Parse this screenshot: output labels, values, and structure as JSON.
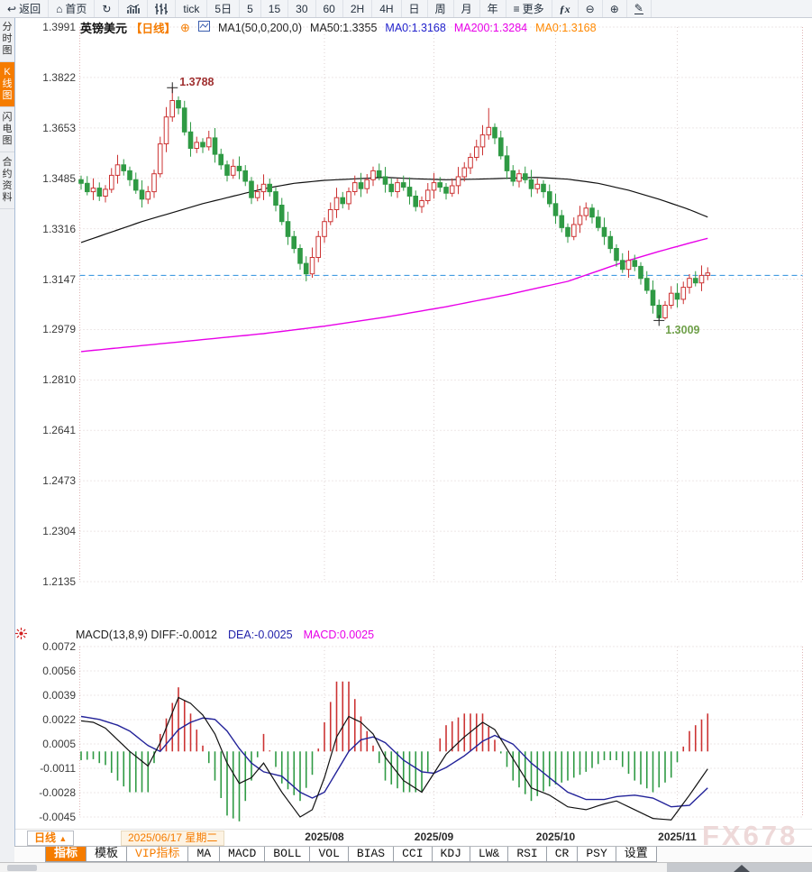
{
  "colors": {
    "accent": "#f57c00",
    "up": "#cc3333",
    "down": "#2f9a44",
    "ma50": "#111111",
    "ma200": "#e800e8",
    "diff_line": "#111111",
    "dea_line": "#222299",
    "dashed_price": "#2b8fdd",
    "grid": "#ddd0d0",
    "plot_border": "#e0b4b4",
    "anno_high": "#a03030",
    "anno_low": "#6fa04a",
    "header_blue": "#2222cc",
    "header_magenta": "#e800e8",
    "header_orange": "#ff8800"
  },
  "toolbar": {
    "buttons": [
      {
        "name": "back",
        "icon": "back-icon",
        "label": "返回"
      },
      {
        "name": "home",
        "icon": "home-icon",
        "label": "首页"
      },
      {
        "name": "refresh",
        "icon": "refresh-icon",
        "label": ""
      },
      {
        "name": "bar-line-chart",
        "icon": "bar-line-chart-icon",
        "label": ""
      },
      {
        "name": "ohlc-chart",
        "icon": "ohlc-chart-icon",
        "label": ""
      },
      {
        "name": "interval-tick",
        "label": "tick"
      },
      {
        "name": "interval-5d",
        "label": "5日"
      },
      {
        "name": "interval-5",
        "label": "5"
      },
      {
        "name": "interval-15",
        "label": "15"
      },
      {
        "name": "interval-30",
        "label": "30"
      },
      {
        "name": "interval-60",
        "label": "60"
      },
      {
        "name": "interval-2h",
        "label": "2H"
      },
      {
        "name": "interval-4h",
        "label": "4H"
      },
      {
        "name": "interval-day",
        "label": "日"
      },
      {
        "name": "interval-week",
        "label": "周"
      },
      {
        "name": "interval-month",
        "label": "月"
      },
      {
        "name": "interval-year",
        "label": "年"
      },
      {
        "name": "more",
        "icon": "menu-icon",
        "label": "更多"
      },
      {
        "name": "formula",
        "icon": "fx-icon",
        "label": ""
      },
      {
        "name": "zoom-out",
        "icon": "zoom-out-icon",
        "label": ""
      },
      {
        "name": "zoom-in",
        "icon": "zoom-in-icon",
        "label": ""
      },
      {
        "name": "draw",
        "icon": "draw-icon",
        "label": ""
      }
    ]
  },
  "sidebar": {
    "items": [
      {
        "name": "time-chart",
        "label": "分时图",
        "active": false
      },
      {
        "name": "kline-chart",
        "label": "K线图",
        "active": true
      },
      {
        "name": "lightning-chart",
        "label": "闪电图",
        "active": false
      },
      {
        "name": "contract-info",
        "label": "合约资料",
        "active": false
      }
    ]
  },
  "chart_header": {
    "symbol": "英镑美元",
    "period": "【日线】",
    "plus_icon": "⊕",
    "ma_settings": "MA1(50,0,200,0)",
    "ma50": "MA50:1.3355",
    "ma0_blue": "MA0:1.3168",
    "ma200": "MA200:1.3284",
    "ma0_orange": "MA0:1.3168"
  },
  "macd_header": {
    "formula_and_diff": "MACD(13,8,9) DIFF:-0.0012",
    "dea": "DEA:-0.0025",
    "macd": "MACD:0.0025"
  },
  "bottom": {
    "period_selector": "日线",
    "period_arrow": "▲",
    "start_date": "2025/06/17 星期二",
    "watermark": "FX678",
    "tabs": [
      {
        "name": "indicator",
        "label": "指标",
        "selected": true,
        "vip": false
      },
      {
        "name": "template",
        "label": "模板",
        "selected": false,
        "vip": false
      },
      {
        "name": "vip-indicator",
        "label": "VIP指标",
        "selected": false,
        "vip": true
      },
      {
        "name": "ma",
        "label": "MA",
        "selected": false,
        "vip": false
      },
      {
        "name": "macd",
        "label": "MACD",
        "selected": false,
        "vip": false
      },
      {
        "name": "boll",
        "label": "BOLL",
        "selected": false,
        "vip": false
      },
      {
        "name": "vol",
        "label": "VOL",
        "selected": false,
        "vip": false
      },
      {
        "name": "bias",
        "label": "BIAS",
        "selected": false,
        "vip": false
      },
      {
        "name": "cci",
        "label": "CCI",
        "selected": false,
        "vip": false
      },
      {
        "name": "kdj",
        "label": "KDJ",
        "selected": false,
        "vip": false
      },
      {
        "name": "lwr",
        "label": "LW&",
        "selected": false,
        "vip": false
      },
      {
        "name": "rsi",
        "label": "RSI",
        "selected": false,
        "vip": false
      },
      {
        "name": "cr",
        "label": "CR",
        "selected": false,
        "vip": false
      },
      {
        "name": "psy",
        "label": "PSY",
        "selected": false,
        "vip": false
      },
      {
        "name": "settings",
        "label": "设置",
        "selected": false,
        "vip": false
      }
    ]
  },
  "chart_data": {
    "type": "candlestick",
    "title": "英镑美元 日线 (GBP/USD daily) with MA50/MA200 and MACD(13,8,9)",
    "price_axis": {
      "min": 1.2135,
      "max": 1.3991,
      "ticks": [
        1.3991,
        1.3822,
        1.3653,
        1.3485,
        1.3316,
        1.3147,
        1.2979,
        1.281,
        1.2641,
        1.2473,
        1.2304,
        1.2135
      ]
    },
    "macd_axis": {
      "min": -0.0045,
      "max": 0.0072,
      "ticks": [
        0.0072,
        0.0056,
        0.0039,
        0.0022,
        0.0005,
        -0.0011,
        -0.0028,
        -0.0045
      ]
    },
    "x_axis": {
      "months": [
        {
          "label": "2025/08",
          "index": 40
        },
        {
          "label": "2025/09",
          "index": 58
        },
        {
          "label": "2025/10",
          "index": 78
        },
        {
          "label": "2025/11",
          "index": 98
        }
      ]
    },
    "annotations": {
      "high": {
        "label": "1.3788",
        "index": 15,
        "price": 1.3788
      },
      "low": {
        "label": "1.3009",
        "index": 95,
        "price": 1.3009
      }
    },
    "current_price_line": 1.316,
    "candles": [
      [
        1.348,
        1.3494,
        1.3447,
        1.3468
      ],
      [
        1.3468,
        1.3492,
        1.3428,
        1.344
      ],
      [
        1.344,
        1.3485,
        1.3412,
        1.3452
      ],
      [
        1.3452,
        1.3471,
        1.3409,
        1.3425
      ],
      [
        1.3425,
        1.3462,
        1.3404,
        1.3448
      ],
      [
        1.3448,
        1.3519,
        1.3436,
        1.3495
      ],
      [
        1.3495,
        1.3563,
        1.3467,
        1.353
      ],
      [
        1.353,
        1.3549,
        1.3494,
        1.351
      ],
      [
        1.351,
        1.3524,
        1.3459,
        1.348
      ],
      [
        1.348,
        1.3504,
        1.3433,
        1.3445
      ],
      [
        1.3445,
        1.3478,
        1.3387,
        1.3415
      ],
      [
        1.3415,
        1.3459,
        1.3399,
        1.344
      ],
      [
        1.344,
        1.3514,
        1.3419,
        1.35
      ],
      [
        1.35,
        1.3624,
        1.3488,
        1.36
      ],
      [
        1.36,
        1.3723,
        1.3572,
        1.369
      ],
      [
        1.369,
        1.3788,
        1.3674,
        1.3745
      ],
      [
        1.3745,
        1.3759,
        1.3699,
        1.372
      ],
      [
        1.372,
        1.3744,
        1.3628,
        1.364
      ],
      [
        1.364,
        1.3673,
        1.3557,
        1.3585
      ],
      [
        1.3585,
        1.3624,
        1.3569,
        1.3605
      ],
      [
        1.3605,
        1.3619,
        1.3569,
        1.359
      ],
      [
        1.359,
        1.3644,
        1.3578,
        1.362
      ],
      [
        1.362,
        1.3653,
        1.3537,
        1.3565
      ],
      [
        1.3565,
        1.3584,
        1.3514,
        1.353
      ],
      [
        1.353,
        1.3544,
        1.3474,
        1.3495
      ],
      [
        1.3495,
        1.3549,
        1.3483,
        1.3525
      ],
      [
        1.3525,
        1.3558,
        1.3482,
        1.351
      ],
      [
        1.351,
        1.3529,
        1.3459,
        1.3475
      ],
      [
        1.3475,
        1.3489,
        1.3399,
        1.342
      ],
      [
        1.342,
        1.3464,
        1.3408,
        1.344
      ],
      [
        1.344,
        1.3498,
        1.3412,
        1.3465
      ],
      [
        1.3465,
        1.3484,
        1.3424,
        1.344
      ],
      [
        1.344,
        1.3454,
        1.3374,
        1.3395
      ],
      [
        1.3395,
        1.3419,
        1.3328,
        1.334
      ],
      [
        1.334,
        1.3373,
        1.3262,
        1.329
      ],
      [
        1.329,
        1.3309,
        1.3234,
        1.325
      ],
      [
        1.325,
        1.3264,
        1.3179,
        1.32
      ],
      [
        1.32,
        1.3224,
        1.314,
        1.3165
      ],
      [
        1.3165,
        1.3253,
        1.3152,
        1.322
      ],
      [
        1.322,
        1.3309,
        1.3204,
        1.329
      ],
      [
        1.329,
        1.3354,
        1.3269,
        1.334
      ],
      [
        1.334,
        1.3404,
        1.3328,
        1.338
      ],
      [
        1.338,
        1.3453,
        1.3352,
        1.342
      ],
      [
        1.342,
        1.3439,
        1.3384,
        1.34
      ],
      [
        1.34,
        1.3454,
        1.3379,
        1.344
      ],
      [
        1.344,
        1.3494,
        1.3428,
        1.347
      ],
      [
        1.347,
        1.3503,
        1.3422,
        1.345
      ],
      [
        1.345,
        1.3499,
        1.3434,
        1.348
      ],
      [
        1.348,
        1.3524,
        1.3459,
        1.351
      ],
      [
        1.351,
        1.3534,
        1.3478,
        1.349
      ],
      [
        1.349,
        1.3523,
        1.3437,
        1.3465
      ],
      [
        1.3465,
        1.3484,
        1.3424,
        1.344
      ],
      [
        1.344,
        1.3484,
        1.3419,
        1.347
      ],
      [
        1.347,
        1.3494,
        1.3443,
        1.3455
      ],
      [
        1.3455,
        1.3488,
        1.3397,
        1.3425
      ],
      [
        1.3425,
        1.3444,
        1.3374,
        1.339
      ],
      [
        1.339,
        1.3424,
        1.3369,
        1.341
      ],
      [
        1.341,
        1.3469,
        1.3398,
        1.3445
      ],
      [
        1.3445,
        1.3503,
        1.3417,
        1.347
      ],
      [
        1.347,
        1.3489,
        1.3439,
        1.3455
      ],
      [
        1.3455,
        1.3469,
        1.3414,
        1.3435
      ],
      [
        1.3435,
        1.3484,
        1.3423,
        1.346
      ],
      [
        1.346,
        1.3523,
        1.3432,
        1.349
      ],
      [
        1.349,
        1.3539,
        1.3474,
        1.352
      ],
      [
        1.352,
        1.3569,
        1.3499,
        1.3555
      ],
      [
        1.3555,
        1.3614,
        1.3543,
        1.359
      ],
      [
        1.359,
        1.3663,
        1.3562,
        1.363
      ],
      [
        1.363,
        1.372,
        1.3614,
        1.3655
      ],
      [
        1.3655,
        1.3669,
        1.3599,
        1.362
      ],
      [
        1.362,
        1.3644,
        1.3548,
        1.356
      ],
      [
        1.356,
        1.3593,
        1.3482,
        1.351
      ],
      [
        1.351,
        1.3529,
        1.3459,
        1.3475
      ],
      [
        1.3475,
        1.3514,
        1.3454,
        1.35
      ],
      [
        1.35,
        1.3524,
        1.3468,
        1.348
      ],
      [
        1.348,
        1.3513,
        1.3422,
        1.345
      ],
      [
        1.345,
        1.3484,
        1.3434,
        1.3465
      ],
      [
        1.3465,
        1.3479,
        1.3419,
        1.344
      ],
      [
        1.344,
        1.3464,
        1.3388,
        1.34
      ],
      [
        1.34,
        1.3433,
        1.3332,
        1.336
      ],
      [
        1.336,
        1.3379,
        1.3304,
        1.332
      ],
      [
        1.332,
        1.3334,
        1.3269,
        1.329
      ],
      [
        1.329,
        1.3354,
        1.3278,
        1.333
      ],
      [
        1.333,
        1.3393,
        1.3302,
        1.336
      ],
      [
        1.336,
        1.3404,
        1.3344,
        1.3385
      ],
      [
        1.3385,
        1.3399,
        1.3334,
        1.3355
      ],
      [
        1.3355,
        1.3379,
        1.3308,
        1.332
      ],
      [
        1.332,
        1.3353,
        1.3262,
        1.329
      ],
      [
        1.329,
        1.3309,
        1.3234,
        1.325
      ],
      [
        1.325,
        1.3264,
        1.3189,
        1.321
      ],
      [
        1.321,
        1.3234,
        1.3168,
        1.318
      ],
      [
        1.318,
        1.3243,
        1.3152,
        1.321
      ],
      [
        1.321,
        1.3229,
        1.3174,
        1.319
      ],
      [
        1.319,
        1.3204,
        1.3129,
        1.315
      ],
      [
        1.315,
        1.3174,
        1.3098,
        1.311
      ],
      [
        1.311,
        1.3143,
        1.3032,
        1.306
      ],
      [
        1.306,
        1.3079,
        1.3009,
        1.3018
      ],
      [
        1.3018,
        1.3074,
        1.3012,
        1.306
      ],
      [
        1.306,
        1.3124,
        1.3048,
        1.31
      ],
      [
        1.31,
        1.3133,
        1.3052,
        1.308
      ],
      [
        1.308,
        1.3139,
        1.3064,
        1.312
      ],
      [
        1.312,
        1.3164,
        1.3099,
        1.315
      ],
      [
        1.315,
        1.3174,
        1.3123,
        1.3135
      ],
      [
        1.3135,
        1.3193,
        1.3107,
        1.316
      ],
      [
        1.316,
        1.3187,
        1.3144,
        1.3168
      ]
    ],
    "ma50_points": [
      [
        0,
        1.327
      ],
      [
        5,
        1.3305
      ],
      [
        10,
        1.334
      ],
      [
        15,
        1.337
      ],
      [
        20,
        1.34
      ],
      [
        25,
        1.3425
      ],
      [
        30,
        1.345
      ],
      [
        35,
        1.3468
      ],
      [
        40,
        1.3478
      ],
      [
        45,
        1.3483
      ],
      [
        50,
        1.3488
      ],
      [
        55,
        1.3483
      ],
      [
        60,
        1.348
      ],
      [
        65,
        1.3482
      ],
      [
        70,
        1.3485
      ],
      [
        75,
        1.3488
      ],
      [
        80,
        1.3482
      ],
      [
        85,
        1.3468
      ],
      [
        90,
        1.3445
      ],
      [
        95,
        1.3415
      ],
      [
        100,
        1.338
      ],
      [
        103,
        1.3355
      ]
    ],
    "ma200_points": [
      [
        0,
        1.2905
      ],
      [
        10,
        1.2925
      ],
      [
        20,
        1.2945
      ],
      [
        30,
        1.2965
      ],
      [
        40,
        1.299
      ],
      [
        50,
        1.302
      ],
      [
        60,
        1.3055
      ],
      [
        70,
        1.3095
      ],
      [
        80,
        1.314
      ],
      [
        85,
        1.3175
      ],
      [
        90,
        1.321
      ],
      [
        95,
        1.324
      ],
      [
        100,
        1.3268
      ],
      [
        103,
        1.3284
      ]
    ],
    "macd_diff_points": [
      [
        0,
        0.0021
      ],
      [
        2,
        0.002
      ],
      [
        4,
        0.0016
      ],
      [
        6,
        0.0008
      ],
      [
        8,
        0.0
      ],
      [
        11,
        -0.001
      ],
      [
        13,
        0.0006
      ],
      [
        16,
        0.0037
      ],
      [
        18,
        0.0033
      ],
      [
        20,
        0.0025
      ],
      [
        22,
        0.0012
      ],
      [
        24,
        -0.0008
      ],
      [
        26,
        -0.0022
      ],
      [
        28,
        -0.0018
      ],
      [
        30,
        -0.0008
      ],
      [
        33,
        -0.0028
      ],
      [
        36,
        -0.0045
      ],
      [
        38,
        -0.004
      ],
      [
        40,
        -0.0018
      ],
      [
        42,
        0.001
      ],
      [
        44,
        0.0024
      ],
      [
        46,
        0.002
      ],
      [
        48,
        0.0012
      ],
      [
        50,
        -0.0004
      ],
      [
        53,
        -0.002
      ],
      [
        56,
        -0.0028
      ],
      [
        58,
        -0.0015
      ],
      [
        60,
        -0.0002
      ],
      [
        63,
        0.001
      ],
      [
        66,
        0.002
      ],
      [
        68,
        0.0015
      ],
      [
        71,
        -0.0005
      ],
      [
        74,
        -0.0025
      ],
      [
        77,
        -0.003
      ],
      [
        80,
        -0.0038
      ],
      [
        83,
        -0.004
      ],
      [
        86,
        -0.0036
      ],
      [
        88,
        -0.0034
      ],
      [
        91,
        -0.004
      ],
      [
        94,
        -0.0046
      ],
      [
        97,
        -0.0047
      ],
      [
        100,
        -0.003
      ],
      [
        103,
        -0.0012
      ]
    ],
    "macd_dea_points": [
      [
        0,
        0.0024
      ],
      [
        3,
        0.0022
      ],
      [
        6,
        0.0018
      ],
      [
        8,
        0.0014
      ],
      [
        11,
        0.0004
      ],
      [
        13,
        0.0
      ],
      [
        16,
        0.0015
      ],
      [
        18,
        0.002
      ],
      [
        20,
        0.0023
      ],
      [
        22,
        0.0022
      ],
      [
        24,
        0.0014
      ],
      [
        26,
        0.0002
      ],
      [
        28,
        -0.0008
      ],
      [
        30,
        -0.0014
      ],
      [
        33,
        -0.0017
      ],
      [
        36,
        -0.0028
      ],
      [
        38,
        -0.0032
      ],
      [
        40,
        -0.0028
      ],
      [
        42,
        -0.0014
      ],
      [
        44,
        0.0
      ],
      [
        46,
        0.0008
      ],
      [
        48,
        0.001
      ],
      [
        50,
        0.0006
      ],
      [
        53,
        -0.0006
      ],
      [
        56,
        -0.0014
      ],
      [
        58,
        -0.0015
      ],
      [
        60,
        -0.0011
      ],
      [
        63,
        -0.0003
      ],
      [
        66,
        0.0007
      ],
      [
        68,
        0.0011
      ],
      [
        71,
        0.0005
      ],
      [
        74,
        -0.0008
      ],
      [
        77,
        -0.0018
      ],
      [
        80,
        -0.0028
      ],
      [
        83,
        -0.0033
      ],
      [
        86,
        -0.0033
      ],
      [
        88,
        -0.0031
      ],
      [
        91,
        -0.003
      ],
      [
        94,
        -0.0032
      ],
      [
        97,
        -0.0038
      ],
      [
        100,
        -0.0037
      ],
      [
        103,
        -0.0025
      ]
    ]
  }
}
